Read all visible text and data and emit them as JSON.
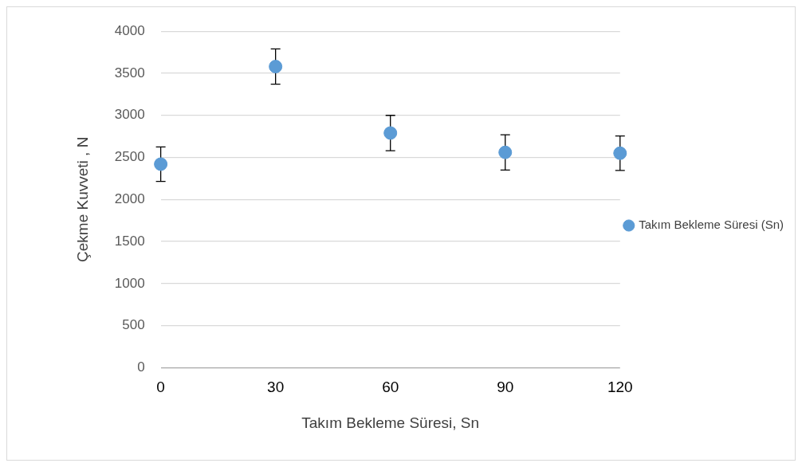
{
  "chart_data": {
    "type": "scatter",
    "xlabel": "Takım Bekleme Süresi, Sn",
    "ylabel": "Çekme Kuvveti , N",
    "x": [
      0,
      30,
      60,
      90,
      120
    ],
    "series": [
      {
        "name": "Takım Bekleme Süresi (Sn)",
        "color": "#5b9bd5",
        "values": [
          2420,
          3580,
          2790,
          2560,
          2550
        ],
        "errors": [
          205,
          210,
          210,
          210,
          205
        ]
      }
    ],
    "xlim": [
      0,
      120
    ],
    "xticks": [
      0,
      30,
      60,
      90,
      120
    ],
    "ylim": [
      0,
      4000
    ],
    "yticks": [
      0,
      500,
      1000,
      1500,
      2000,
      2500,
      3000,
      3500,
      4000
    ],
    "grid": "y",
    "legend": "right",
    "marker": "circle"
  }
}
